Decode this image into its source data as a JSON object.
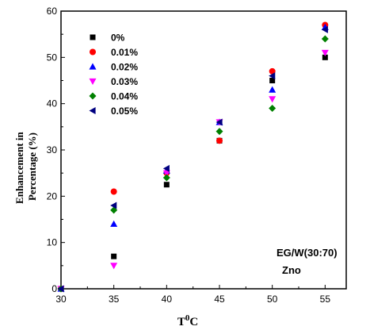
{
  "chart_data": {
    "type": "scatter",
    "xlabel": {
      "main": "T",
      "sup": "0",
      "tail": "C"
    },
    "ylabel": [
      "Enhancement in",
      "Percentage (%)"
    ],
    "xlim": [
      30,
      57
    ],
    "ylim": [
      0,
      60
    ],
    "xticks": [
      30,
      35,
      40,
      45,
      50,
      55
    ],
    "yticks": [
      0,
      10,
      20,
      30,
      40,
      50,
      60
    ],
    "x": [
      30,
      35,
      40,
      45,
      50,
      55
    ],
    "legend_position": "top-left",
    "annotations": [
      "EG/W(30:70)",
      "Zno"
    ],
    "series": [
      {
        "name": "0%",
        "marker": "square",
        "color": "#000000",
        "values": [
          0,
          7,
          22.5,
          32,
          45,
          50
        ]
      },
      {
        "name": "0.01%",
        "marker": "circle",
        "color": "#ff0000",
        "values": [
          0,
          21,
          25,
          32,
          47,
          57
        ]
      },
      {
        "name": "0.02%",
        "marker": "triangle-up",
        "color": "#0000ff",
        "values": [
          0,
          14,
          25.5,
          36,
          43,
          56.5
        ]
      },
      {
        "name": "0.03%",
        "marker": "triangle-down",
        "color": "#ff00ff",
        "values": [
          0,
          5,
          25,
          36,
          41,
          51
        ]
      },
      {
        "name": "0.04%",
        "marker": "diamond",
        "color": "#008000",
        "values": [
          0,
          17,
          24,
          34,
          39,
          54
        ]
      },
      {
        "name": "0.05%",
        "marker": "triangle-left",
        "color": "#000080",
        "values": [
          0,
          18,
          26,
          36,
          46,
          56
        ]
      }
    ]
  }
}
